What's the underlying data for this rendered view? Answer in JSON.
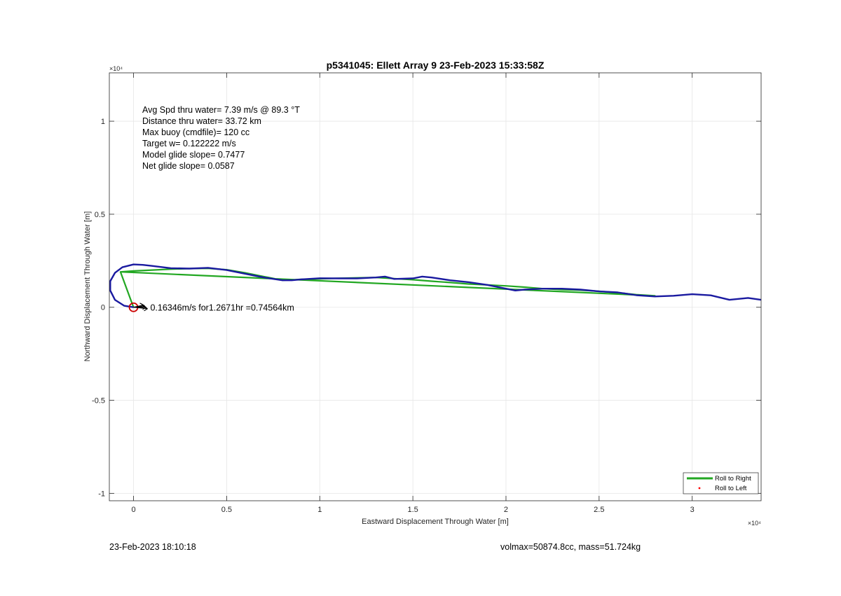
{
  "footer": {
    "left": "23-Feb-2023 18:10:18",
    "right": "volmax=50874.8cc, mass=51.724kg"
  },
  "colors": {
    "track": "#1a1aa0",
    "roll_right": "#22a722",
    "roll_left": "#ff0000",
    "marker": "#cc0000",
    "current_arrow": "#000000"
  },
  "chart_data": {
    "type": "line",
    "title": "p5341045: Ellett Array 9 23-Feb-2023 15:33:58Z",
    "xlabel": "Eastward Displacement Through Water [m]",
    "ylabel": "Northward Displacement Through Water [m]",
    "x_exponent": "×10⁴",
    "y_exponent": "×10⁴",
    "xlim": [
      -1300,
      33700
    ],
    "ylim": [
      -10400,
      12600
    ],
    "x_ticks": [
      0,
      5000,
      10000,
      15000,
      20000,
      25000,
      30000
    ],
    "x_tick_labels": [
      "0",
      "0.5",
      "1",
      "1.5",
      "2",
      "2.5",
      "3"
    ],
    "y_ticks": [
      -10000,
      -5000,
      0,
      5000,
      10000
    ],
    "y_tick_labels": [
      "-1",
      "-0.5",
      "0",
      "0.5",
      "1"
    ],
    "grid": true,
    "legend_position": "bottom-right",
    "stats_lines": [
      "Avg Spd thru water=  7.39 m/s @  89.3 °T",
      "Distance thru water= 33.72 km",
      "Max buoy (cmdfile)= 120 cc",
      "Target w= 0.122222 m/s",
      "Model glide slope= 0.7477",
      "Net glide slope= 0.0587"
    ],
    "annotation": {
      "text": "0.16346m/s for1.2671hr =0.74564km",
      "x": 900,
      "y": 0
    },
    "series": [
      {
        "name": "Roll to Right",
        "style": "line",
        "x": [
          -700,
          0,
          1000,
          2000,
          3000,
          4000,
          5000,
          6000,
          7000,
          8000,
          9000,
          10000,
          11000,
          12000,
          13000,
          14000,
          15000,
          16000,
          17000,
          18000,
          19000,
          20000,
          21000,
          22000,
          23000,
          24000,
          25000,
          26000,
          27000,
          28000,
          -700,
          0
        ],
        "y": [
          1900,
          1950,
          2000,
          2050,
          2080,
          2090,
          2020,
          1850,
          1650,
          1450,
          1500,
          1530,
          1560,
          1580,
          1600,
          1540,
          1480,
          1400,
          1330,
          1250,
          1200,
          1150,
          1080,
          1000,
          950,
          920,
          860,
          780,
          680,
          620,
          1900,
          0
        ]
      },
      {
        "name": "Roll to Left",
        "style": "points",
        "x": [],
        "y": []
      },
      {
        "name": "track",
        "style": "line",
        "x": [
          0,
          -500,
          -1000,
          -1250,
          -1250,
          -1000,
          -600,
          0,
          500,
          1000,
          2000,
          3000,
          4000,
          5000,
          6000,
          7000,
          8000,
          8500,
          9000,
          10000,
          11000,
          12000,
          13000,
          13500,
          14000,
          15000,
          15500,
          16000,
          17000,
          18000,
          19000,
          20000,
          20500,
          21000,
          22000,
          23000,
          24000,
          25000,
          26000,
          27000,
          28000,
          29000,
          30000,
          31000,
          32000,
          33000,
          33700
        ],
        "y": [
          0,
          80,
          400,
          900,
          1400,
          1850,
          2150,
          2300,
          2280,
          2220,
          2100,
          2080,
          2120,
          2000,
          1800,
          1600,
          1450,
          1450,
          1500,
          1560,
          1550,
          1550,
          1600,
          1650,
          1520,
          1550,
          1650,
          1600,
          1450,
          1350,
          1200,
          1000,
          900,
          950,
          1000,
          1000,
          950,
          850,
          800,
          650,
          580,
          620,
          700,
          640,
          400,
          500,
          400
        ]
      }
    ]
  }
}
